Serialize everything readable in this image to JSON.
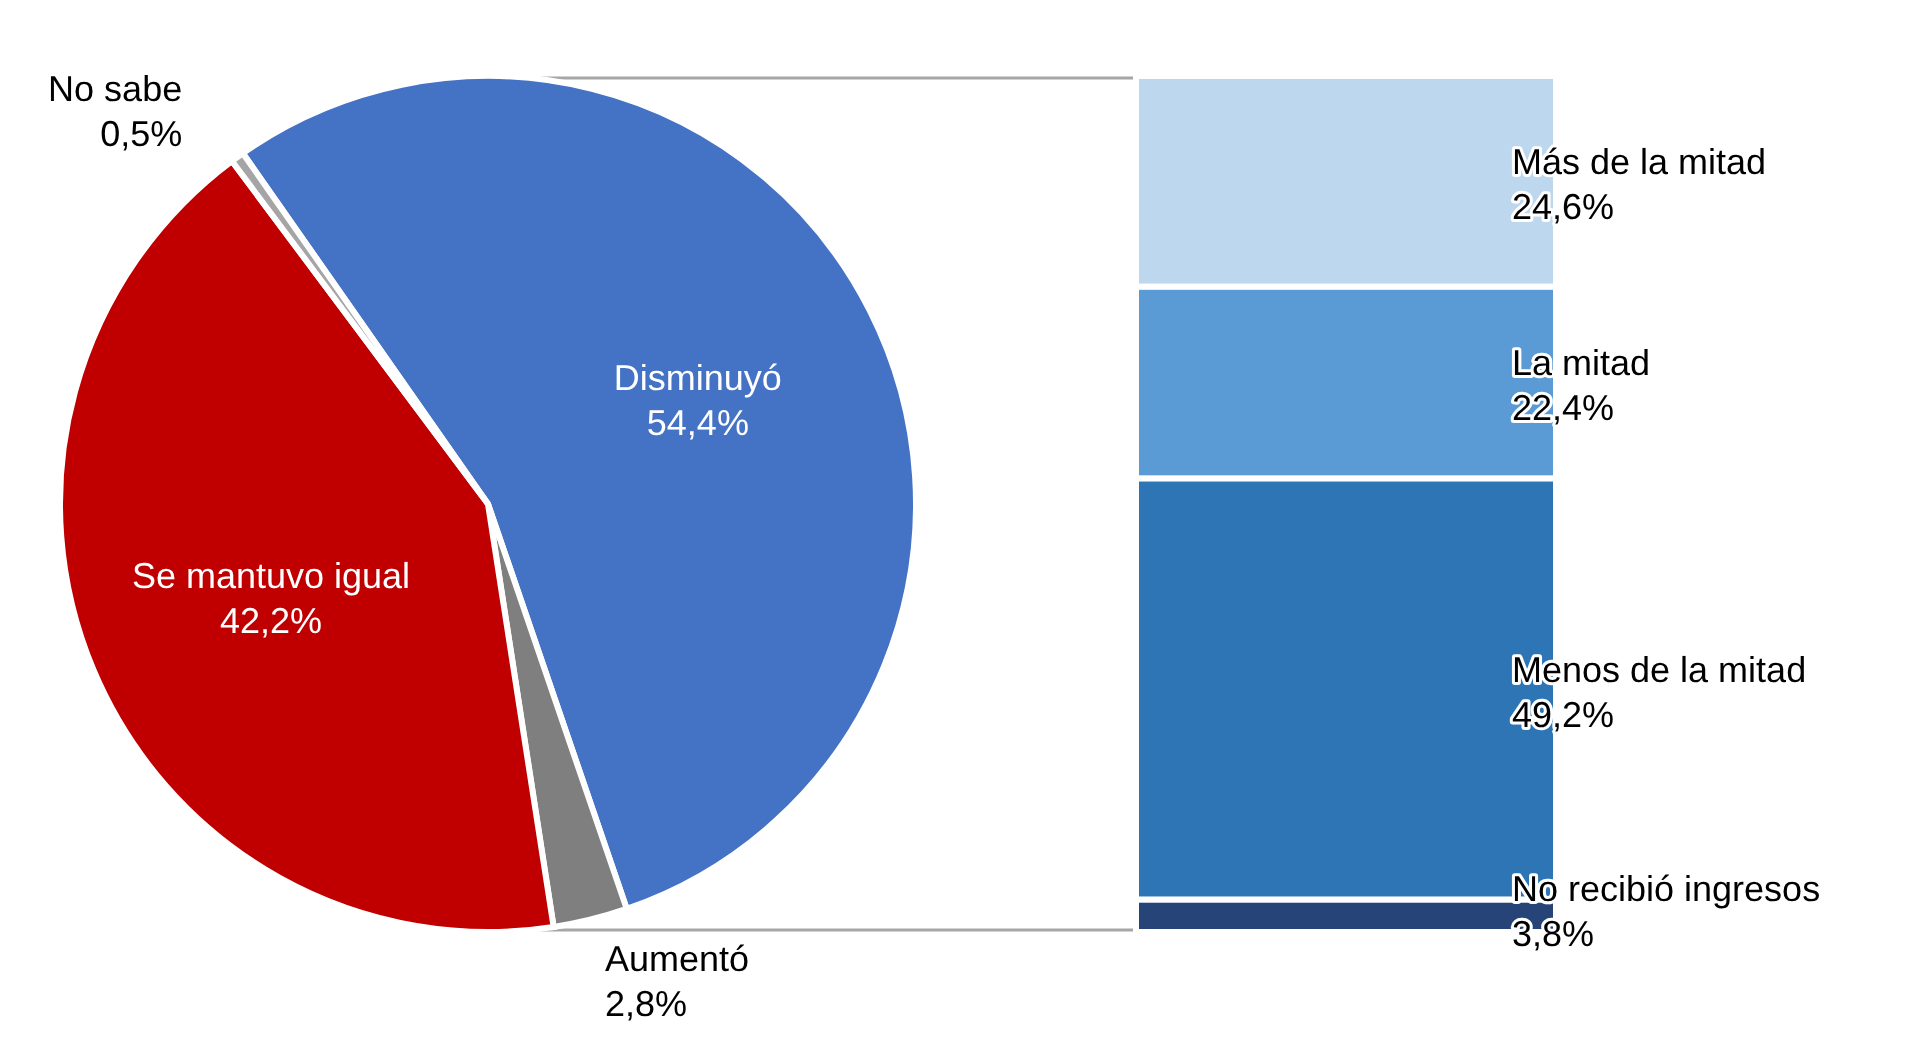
{
  "chart_data": [
    {
      "type": "pie",
      "categories": [
        "Disminuyó",
        "Aumentó",
        "Se mantuvo igual",
        "No sabe"
      ],
      "values": [
        54.4,
        2.8,
        42.2,
        0.5
      ],
      "colors": [
        "#4472c4",
        "#7f7f7f",
        "#c00000",
        "#a5a5a5"
      ],
      "value_labels": [
        "54,4%",
        "2,8%",
        "42,2%",
        "0,5%"
      ]
    },
    {
      "type": "bar",
      "stacked": true,
      "categories": [
        null
      ],
      "series": [
        {
          "name": "No recibió ingresos",
          "color": "#264478",
          "values": [
            3.8
          ],
          "value_labels": [
            "3,8%"
          ]
        },
        {
          "name": "Menos de la mitad",
          "color": "#2e75b6",
          "values": [
            49.2
          ],
          "value_labels": [
            "49,2%"
          ]
        },
        {
          "name": "La mitad",
          "color": "#5b9bd5",
          "values": [
            22.4
          ],
          "value_labels": [
            "22,4%"
          ]
        },
        {
          "name": "Más de la mitad",
          "color": "#bdd7ee",
          "values": [
            24.6
          ],
          "value_labels": [
            "24,6%"
          ]
        }
      ]
    }
  ]
}
